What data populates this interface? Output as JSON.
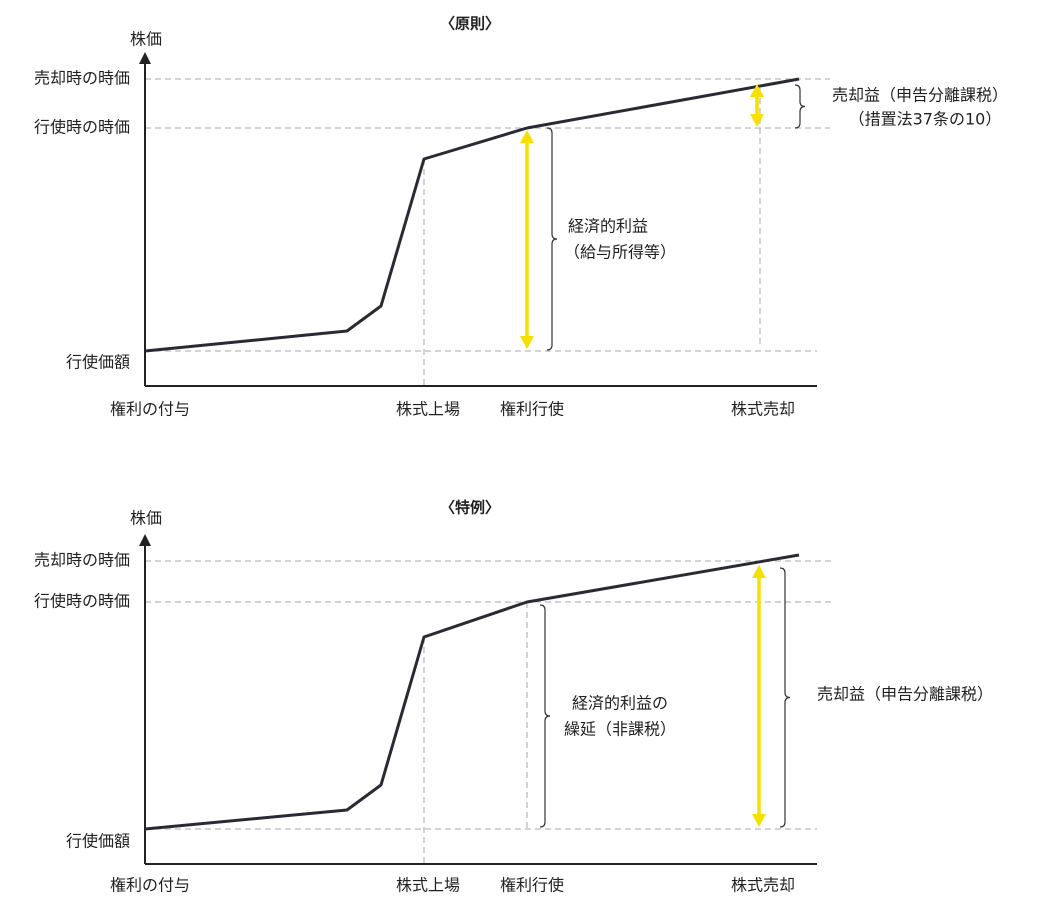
{
  "panels": [
    {
      "title": "〈原則〉",
      "y_axis_label": "株価",
      "y_labels": [
        "売却時の時価",
        "行使時の時価",
        "行使価額"
      ],
      "x_labels": [
        "権利の付与",
        "株式上場",
        "権利行使",
        "株式売却"
      ],
      "annotations": [
        "経済的利益",
        "（給与所得等）",
        "売却益（申告分離課税）",
        "（措置法37条の10）"
      ]
    },
    {
      "title": "〈特例〉",
      "y_axis_label": "株価",
      "y_labels": [
        "売却時の時価",
        "行使時の時価",
        "行使価額"
      ],
      "x_labels": [
        "権利の付与",
        "株式上場",
        "権利行使",
        "株式売却"
      ],
      "annotations": [
        "経済的利益の",
        "繰延（非課税）",
        "売却益（申告分離課税）"
      ]
    }
  ]
}
